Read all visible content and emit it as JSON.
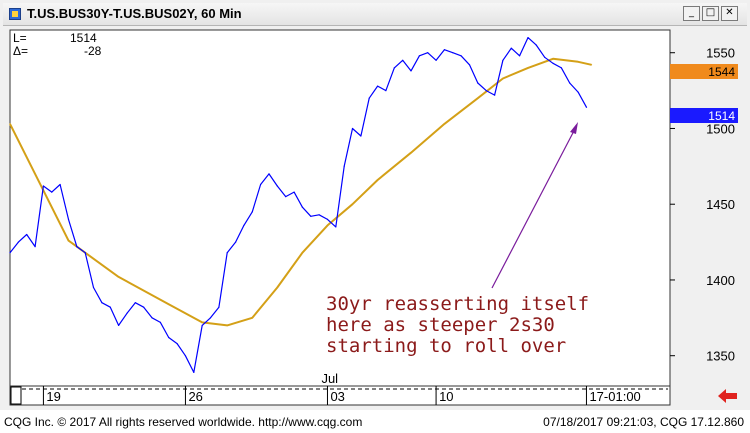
{
  "window": {
    "title": "T.US.BUS30Y-T.US.BUS02Y, 60 Min",
    "minimize_label": "_",
    "maximize_label": "□",
    "close_label": "✕",
    "icon": "cqg-chart-icon"
  },
  "readout": {
    "l_label": "L=",
    "l_value": "1514",
    "delta_label": "Δ=",
    "delta_value": "-28"
  },
  "annotation": {
    "lines": [
      "30yr reasserting itself",
      "here as steeper 2s30",
      "starting to roll over"
    ],
    "color": "#8b1a1a"
  },
  "price_tags": {
    "ma_value": "1544",
    "last_value": "1514"
  },
  "footer": {
    "left_text": "CQG Inc. © 2017 All rights reserved worldwide. http://www.cqg.com",
    "right_text": "07/18/2017 09:21:03, CQG 17.12.860"
  },
  "nav_icon": "red-left-arrow-icon",
  "colors": {
    "price_line": "#0000ff",
    "moving_average": "#d4a017",
    "ma_tag": "#f08a1c",
    "last_tag": "#1a1aff",
    "annotation": "#8b1a1a",
    "arrow": "#7a1c9c",
    "nav_arrow": "#e0231f"
  },
  "chart_data": {
    "type": "line",
    "title": "T.US.BUS30Y-T.US.BUS02Y, 60 Min",
    "xlabel": "",
    "ylabel": "",
    "ylim": [
      1330,
      1565
    ],
    "y_ticks": [
      1350,
      1400,
      1450,
      1500,
      1550
    ],
    "x_tick_labels": [
      {
        "label": "19",
        "x": 3
      },
      {
        "label": "26",
        "x": 20
      },
      {
        "label": "03",
        "x": 37
      },
      {
        "label": "10",
        "x": 50
      },
      {
        "label": "17-01:00",
        "x": 68
      }
    ],
    "x_top_label": {
      "label": "Jul",
      "x": 37
    },
    "xlim": [
      -1,
      78
    ],
    "grid": false,
    "series": [
      {
        "style": "price",
        "x": [
          -1,
          0,
          1,
          2,
          3,
          4,
          5,
          6,
          7,
          8,
          9,
          10,
          11,
          12,
          13,
          14,
          15,
          16,
          17,
          18,
          19,
          20,
          21,
          22,
          23,
          24,
          25,
          26,
          27,
          28,
          29,
          30,
          31,
          32,
          33,
          34,
          35,
          36,
          37,
          38,
          39,
          40,
          41,
          42,
          43,
          44,
          45,
          46,
          47,
          48,
          49,
          50,
          51,
          52,
          53,
          54,
          55,
          56,
          57,
          58,
          59,
          60,
          61,
          62,
          63,
          64,
          65,
          66,
          67,
          68
        ],
        "y": [
          1418,
          1425,
          1430,
          1422,
          1462,
          1458,
          1463,
          1440,
          1422,
          1418,
          1395,
          1385,
          1382,
          1370,
          1378,
          1385,
          1382,
          1375,
          1372,
          1362,
          1358,
          1350,
          1339,
          1370,
          1375,
          1382,
          1418,
          1425,
          1436,
          1445,
          1463,
          1470,
          1462,
          1455,
          1458,
          1448,
          1442,
          1443,
          1440,
          1435,
          1475,
          1500,
          1495,
          1520,
          1528,
          1525,
          1540,
          1545,
          1538,
          1548,
          1550,
          1545,
          1552,
          1550,
          1548,
          1542,
          1530,
          1525,
          1522,
          1545,
          1553,
          1548,
          1560,
          1555,
          1547,
          1543,
          1540,
          1530,
          1524,
          1514
        ]
      },
      {
        "style": "moving_average",
        "x": [
          -1,
          2,
          6,
          12,
          18,
          22,
          25,
          28,
          31,
          34,
          37,
          40,
          43,
          47,
          51,
          55,
          58,
          61,
          64,
          67,
          68.6
        ],
        "y": [
          1503,
          1470,
          1426,
          1402,
          1384,
          1372,
          1370,
          1375,
          1395,
          1418,
          1436,
          1450,
          1466,
          1484,
          1503,
          1520,
          1533,
          1540,
          1546,
          1544,
          1542
        ]
      }
    ]
  }
}
